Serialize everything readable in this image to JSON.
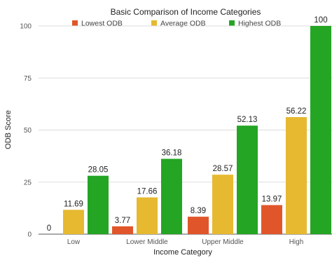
{
  "chart_data": {
    "type": "bar",
    "title": "Basic Comparison of Income Categories",
    "xlabel": "Income Category",
    "ylabel": "ODB Score",
    "categories": [
      "Low",
      "Lower Middle",
      "Upper Middle",
      "High"
    ],
    "ylim": [
      0,
      100
    ],
    "yticks": [
      0,
      25,
      50,
      75,
      100
    ],
    "grid": true,
    "legend_position": "top",
    "series": [
      {
        "name": "Lowest ODB",
        "color": "#e0562a",
        "values": [
          0,
          3.77,
          8.39,
          13.97
        ]
      },
      {
        "name": "Average ODB",
        "color": "#e6b931",
        "values": [
          11.69,
          17.66,
          28.57,
          56.22
        ]
      },
      {
        "name": "Highest ODB",
        "color": "#24a524",
        "values": [
          28.05,
          36.18,
          52.13,
          100
        ]
      }
    ]
  }
}
